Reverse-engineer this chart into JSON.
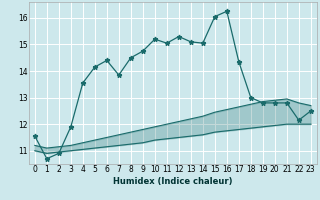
{
  "xlabel": "Humidex (Indice chaleur)",
  "bg_color": "#cde8ec",
  "grid_color": "#ffffff",
  "line_color": "#1a6b6b",
  "xlim": [
    -0.5,
    23.5
  ],
  "ylim": [
    10.5,
    16.6
  ],
  "yticks": [
    11,
    12,
    13,
    14,
    15,
    16
  ],
  "xticks": [
    0,
    1,
    2,
    3,
    4,
    5,
    6,
    7,
    8,
    9,
    10,
    11,
    12,
    13,
    14,
    15,
    16,
    17,
    18,
    19,
    20,
    21,
    22,
    23
  ],
  "main_line_x": [
    0,
    1,
    2,
    3,
    4,
    5,
    6,
    7,
    8,
    9,
    10,
    11,
    12,
    13,
    14,
    15,
    16,
    17,
    18,
    19,
    20,
    21,
    22,
    23
  ],
  "main_line_y": [
    11.55,
    10.7,
    10.9,
    11.9,
    13.55,
    14.15,
    14.4,
    13.85,
    14.5,
    14.75,
    15.2,
    15.05,
    15.3,
    15.1,
    15.05,
    16.05,
    16.25,
    14.35,
    13.0,
    12.8,
    12.8,
    12.8,
    12.15,
    12.5
  ],
  "lower_band_y": [
    11.0,
    10.9,
    10.95,
    11.0,
    11.05,
    11.1,
    11.15,
    11.2,
    11.25,
    11.3,
    11.4,
    11.45,
    11.5,
    11.55,
    11.6,
    11.7,
    11.75,
    11.8,
    11.85,
    11.9,
    11.95,
    12.0,
    12.0,
    12.0
  ],
  "upper_band_y": [
    11.2,
    11.1,
    11.15,
    11.2,
    11.3,
    11.4,
    11.5,
    11.6,
    11.7,
    11.8,
    11.9,
    12.0,
    12.1,
    12.2,
    12.3,
    12.45,
    12.55,
    12.65,
    12.75,
    12.85,
    12.9,
    12.95,
    12.8,
    12.7
  ],
  "xlabel_fontsize": 6.0,
  "tick_fontsize": 5.5
}
